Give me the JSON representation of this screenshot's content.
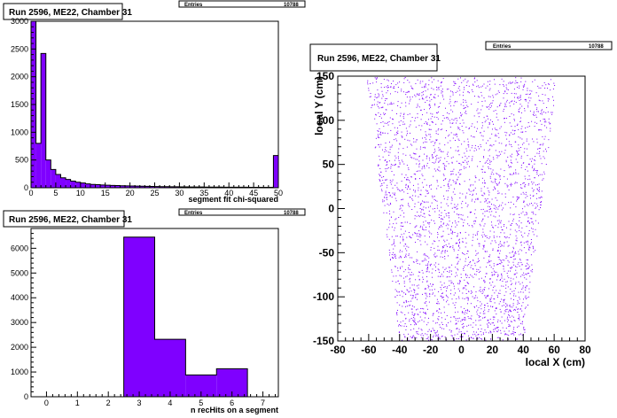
{
  "colors": {
    "fill": "#7f00ff",
    "line": "#000000"
  },
  "panels": [
    {
      "title": "Run 2596, ME22, Chamber 31",
      "stats_label": "Entries",
      "stats_value": "10788"
    },
    {
      "title": "Run 2596, ME22, Chamber 31",
      "stats_label": "Entries",
      "stats_value": "10788"
    },
    {
      "title": "Run 2596, ME22, Chamber 31",
      "stats_label": "Entries",
      "stats_value": "10788"
    }
  ],
  "chart_data": [
    {
      "type": "bar",
      "xlabel": "segment fit chi-squared",
      "xlim": [
        0,
        50
      ],
      "ylim": [
        0,
        3000
      ],
      "bin_width": 1,
      "x_ticks": [
        "0",
        "5",
        "10",
        "15",
        "20",
        "25",
        "30",
        "35",
        "40",
        "45",
        "50"
      ],
      "y_ticks": [
        "0",
        "500",
        "1000",
        "1500",
        "2000",
        "2500",
        "3000"
      ],
      "values": [
        3000,
        800,
        2420,
        500,
        330,
        240,
        180,
        150,
        120,
        100,
        85,
        70,
        60,
        55,
        50,
        45,
        42,
        40,
        36,
        34,
        32,
        30,
        28,
        26,
        24,
        22,
        20,
        20,
        18,
        18,
        16,
        15,
        14,
        14,
        13,
        12,
        12,
        11,
        11,
        10,
        10,
        10,
        9,
        9,
        8,
        8,
        8,
        8,
        7,
        580
      ]
    },
    {
      "type": "bar",
      "xlabel": "n recHits on a segment",
      "xlim": [
        -0.5,
        7.5
      ],
      "ylim": [
        0,
        6800
      ],
      "bins": [
        {
          "low": 2.5,
          "high": 3.5,
          "value": 6450
        },
        {
          "low": 3.5,
          "high": 4.5,
          "value": 2320
        },
        {
          "low": 4.5,
          "high": 5.5,
          "value": 880
        },
        {
          "low": 5.5,
          "high": 6.5,
          "value": 1130
        }
      ],
      "x_ticks": [
        "0",
        "1",
        "2",
        "3",
        "4",
        "5",
        "6",
        "7"
      ],
      "y_ticks": [
        "0",
        "1000",
        "2000",
        "3000",
        "4000",
        "5000",
        "6000"
      ]
    },
    {
      "type": "scatter",
      "xlabel": "local X (cm)",
      "ylabel": "local Y (cm)",
      "xlim": [
        -80,
        80
      ],
      "ylim": [
        -150,
        150
      ],
      "region": {
        "top_y": 150,
        "top_half_width": 62,
        "bottom_y": -150,
        "bottom_half_width": 40
      },
      "n_points": 10788,
      "x_ticks": [
        "-80",
        "-60",
        "-40",
        "-20",
        "0",
        "20",
        "40",
        "60",
        "80"
      ],
      "y_ticks": [
        "-150",
        "-100",
        "-50",
        "0",
        "50",
        "100",
        "150"
      ]
    }
  ]
}
